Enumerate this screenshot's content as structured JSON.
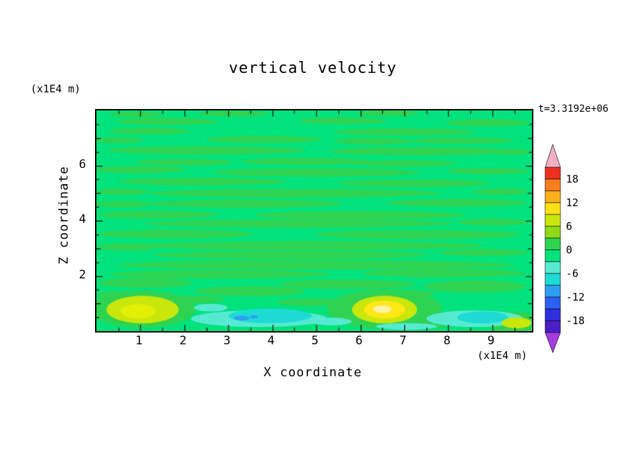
{
  "chart_data": {
    "type": "contour",
    "title": "vertical velocity",
    "xlabel": "X coordinate",
    "ylabel": "Z coordinate",
    "x_unit_label": "(x1E4 m)",
    "y_unit_label": "(x1E4 m)",
    "time_label": "t=3.3192e+06",
    "xlim": [
      0,
      9.9
    ],
    "ylim": [
      0,
      8
    ],
    "x_ticks": [
      1,
      2,
      3,
      4,
      5,
      6,
      7,
      8,
      9
    ],
    "y_ticks": [
      2,
      4,
      6
    ],
    "grid": false,
    "legend_position": "right-colorbar",
    "colorbar": {
      "levels": [
        21,
        18,
        15,
        12,
        9,
        6,
        3,
        0,
        -3,
        -6,
        -9,
        -12,
        -15,
        -18,
        -21
      ],
      "segment_colors": [
        "#ee3123",
        "#fb7d20",
        "#ffb01c",
        "#ffe014",
        "#c9e70b",
        "#8edc18",
        "#2fd352",
        "#00e27c",
        "#57ead3",
        "#1ddbd4",
        "#2da0f2",
        "#2b62f2",
        "#2f2fe0",
        "#4b1fc8"
      ],
      "over_color": "#f2afc3",
      "under_color": "#a43ce0",
      "tick_values": [
        18,
        12,
        6,
        0,
        -6,
        -12,
        -18
      ],
      "tick_labels": [
        "18",
        "12",
        "6",
        "0",
        "-6",
        "-12",
        "-18"
      ]
    },
    "field": {
      "background_color": "#00e27c",
      "background_value": 0,
      "streak_color": "#2fd352",
      "streaks": [
        [
          0.9,
          7.85,
          0.6,
          0.1
        ],
        [
          3.1,
          7.88,
          0.8,
          0.1
        ],
        [
          6.6,
          7.9,
          0.7,
          0.1
        ],
        [
          1.6,
          7.6,
          1.15,
          0.13
        ],
        [
          5.6,
          7.62,
          1.0,
          0.12
        ],
        [
          8.9,
          7.55,
          0.95,
          0.13
        ],
        [
          1.2,
          7.25,
          0.9,
          0.12
        ],
        [
          7.0,
          7.22,
          1.6,
          0.13
        ],
        [
          0.5,
          6.92,
          0.55,
          0.11
        ],
        [
          3.8,
          6.95,
          1.3,
          0.13
        ],
        [
          6.3,
          6.88,
          0.9,
          0.12
        ],
        [
          8.3,
          6.9,
          1.15,
          0.12
        ],
        [
          2.5,
          6.55,
          2.25,
          0.15
        ],
        [
          7.4,
          6.52,
          2.1,
          0.15
        ],
        [
          9.4,
          6.5,
          0.5,
          0.11
        ],
        [
          2.0,
          6.12,
          1.1,
          0.12
        ],
        [
          4.8,
          6.15,
          1.5,
          0.13
        ],
        [
          7.0,
          6.08,
          1.2,
          0.12
        ],
        [
          1.0,
          5.85,
          1.0,
          0.13
        ],
        [
          5.0,
          5.75,
          2.35,
          0.15
        ],
        [
          8.9,
          5.8,
          0.9,
          0.12
        ],
        [
          2.4,
          5.42,
          1.9,
          0.14
        ],
        [
          7.2,
          5.36,
          1.7,
          0.14
        ],
        [
          0.6,
          5.05,
          0.6,
          0.12
        ],
        [
          4.5,
          5.0,
          3.3,
          0.16
        ],
        [
          9.2,
          5.05,
          0.65,
          0.12
        ],
        [
          3.4,
          4.62,
          2.2,
          0.15
        ],
        [
          8.2,
          4.65,
          1.6,
          0.14
        ],
        [
          0.6,
          4.6,
          0.65,
          0.12
        ],
        [
          1.4,
          4.22,
          1.35,
          0.14
        ],
        [
          6.0,
          4.2,
          2.4,
          0.15
        ],
        [
          4.6,
          3.9,
          3.5,
          0.15
        ],
        [
          9.0,
          3.95,
          0.8,
          0.12
        ],
        [
          1.8,
          3.52,
          1.75,
          0.16
        ],
        [
          7.3,
          3.5,
          2.35,
          0.16
        ],
        [
          4.9,
          3.1,
          3.9,
          0.16
        ],
        [
          0.7,
          3.05,
          0.7,
          0.13
        ],
        [
          4.4,
          2.76,
          3.1,
          0.15
        ],
        [
          8.8,
          2.85,
          1.0,
          0.13
        ],
        [
          5.0,
          2.4,
          4.5,
          0.17
        ],
        [
          2.8,
          2.06,
          2.5,
          0.15
        ],
        [
          7.9,
          2.1,
          1.85,
          0.15
        ],
        [
          1.1,
          1.75,
          1.05,
          0.18
        ],
        [
          5.7,
          1.7,
          1.55,
          0.17
        ],
        [
          8.6,
          1.62,
          1.15,
          0.22
        ],
        [
          3.5,
          1.45,
          1.25,
          0.18
        ],
        [
          6.9,
          1.35,
          0.8,
          0.15
        ],
        [
          0.6,
          1.3,
          0.6,
          0.15
        ],
        [
          2.2,
          1.15,
          0.7,
          0.14
        ],
        [
          4.9,
          1.05,
          0.8,
          0.14
        ],
        [
          6.55,
          0.8,
          1.3,
          0.72
        ],
        [
          1.05,
          0.8,
          1.2,
          0.68
        ],
        [
          9.5,
          0.33,
          0.65,
          0.38
        ],
        [
          7.55,
          0.28,
          0.5,
          0.18
        ]
      ],
      "patches": [
        {
          "c": "#c9e70b",
          "x": 1.05,
          "y": 0.78,
          "rx": 0.82,
          "ry": 0.5
        },
        {
          "c": "#e4ef06",
          "x": 0.95,
          "y": 0.72,
          "rx": 0.4,
          "ry": 0.26
        },
        {
          "c": "#57ead3",
          "x": 3.7,
          "y": 0.45,
          "rx": 1.55,
          "ry": 0.3
        },
        {
          "c": "#1ddbd4",
          "x": 3.95,
          "y": 0.55,
          "rx": 0.95,
          "ry": 0.26
        },
        {
          "c": "#57ead3",
          "x": 2.6,
          "y": 0.85,
          "rx": 0.38,
          "ry": 0.14
        },
        {
          "c": "#2da0f2",
          "x": 3.3,
          "y": 0.47,
          "rx": 0.18,
          "ry": 0.085
        },
        {
          "c": "#2da0f2",
          "x": 3.58,
          "y": 0.52,
          "rx": 0.1,
          "ry": 0.06
        },
        {
          "c": "#57ead3",
          "x": 5.35,
          "y": 0.35,
          "rx": 0.45,
          "ry": 0.14
        },
        {
          "c": "#57ead3",
          "x": 8.6,
          "y": 0.45,
          "rx": 1.1,
          "ry": 0.3
        },
        {
          "c": "#1ddbd4",
          "x": 8.78,
          "y": 0.5,
          "rx": 0.58,
          "ry": 0.22
        },
        {
          "c": "#57ead3",
          "x": 7.05,
          "y": 0.17,
          "rx": 0.7,
          "ry": 0.12
        },
        {
          "c": "#c9e70b",
          "x": 6.55,
          "y": 0.78,
          "rx": 0.74,
          "ry": 0.5
        },
        {
          "c": "#ffe816",
          "x": 6.55,
          "y": 0.78,
          "rx": 0.47,
          "ry": 0.33
        },
        {
          "c": "#fdf3a6",
          "x": 6.5,
          "y": 0.8,
          "rx": 0.21,
          "ry": 0.14
        },
        {
          "c": "#c9e70b",
          "x": 9.55,
          "y": 0.3,
          "rx": 0.34,
          "ry": 0.2
        }
      ]
    }
  }
}
